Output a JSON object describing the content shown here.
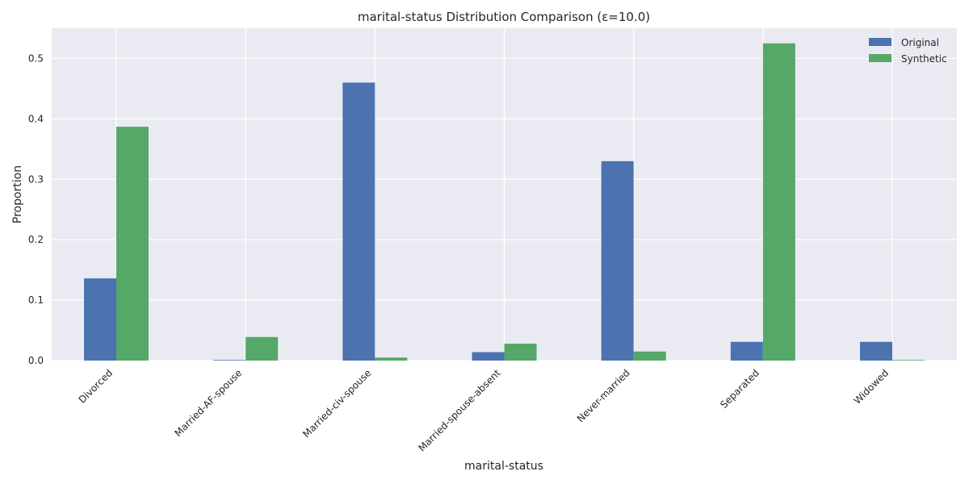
{
  "chart_data": {
    "type": "bar",
    "title": "marital-status Distribution Comparison (ε=10.0)",
    "xlabel": "marital-status",
    "ylabel": "Proportion",
    "categories": [
      "Divorced",
      "Married-AF-spouse",
      "Married-civ-spouse",
      "Married-spouse-absent",
      "Never-married",
      "Separated",
      "Widowed"
    ],
    "series": [
      {
        "name": "Original",
        "values": [
          0.136,
          0.001,
          0.46,
          0.014,
          0.33,
          0.031,
          0.031
        ]
      },
      {
        "name": "Synthetic",
        "values": [
          0.387,
          0.039,
          0.005,
          0.028,
          0.015,
          0.525,
          0.001
        ]
      }
    ],
    "ylim": [
      0,
      0.55
    ],
    "yticks": [
      "0.0",
      "0.1",
      "0.2",
      "0.3",
      "0.4",
      "0.5"
    ],
    "grid": true,
    "legend_position": "top-right"
  },
  "colors": {
    "Original": "#4c72b0",
    "Synthetic": "#55a868",
    "plot_background": "#eaeaf2",
    "grid": "#ffffff"
  }
}
